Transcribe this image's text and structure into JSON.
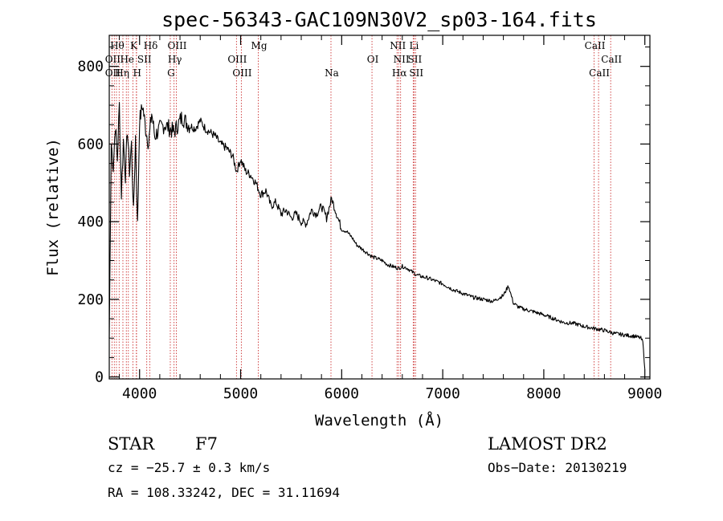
{
  "figure": {
    "title": "spec-56343-GAC109N30V2_sp03-164.fits"
  },
  "chart_data": {
    "type": "line",
    "title": "spec-56343-GAC109N30V2_sp03-164.fits",
    "xlabel": "Wavelength (Å)",
    "ylabel": "Flux (relative)",
    "xlim": [
      3700,
      9050
    ],
    "ylim": [
      -5,
      880
    ],
    "grid": false,
    "x_ticks": [
      4000,
      5000,
      6000,
      7000,
      8000,
      9000
    ],
    "y_ticks": [
      0,
      200,
      400,
      600,
      800
    ],
    "series": [
      {
        "wavelength": [
          3700,
          3720,
          3740,
          3760,
          3780,
          3800,
          3820,
          3840,
          3860,
          3880,
          3900,
          3920,
          3940,
          3960,
          3980,
          4000,
          4030,
          4060,
          4090,
          4120,
          4150,
          4200,
          4250,
          4300,
          4340,
          4380,
          4420,
          4480,
          4550,
          4600,
          4650,
          4700,
          4750,
          4800,
          4860,
          4920,
          4960,
          5000,
          5050,
          5100,
          5150,
          5200,
          5250,
          5300,
          5350,
          5400,
          5450,
          5500,
          5550,
          5600,
          5650,
          5700,
          5750,
          5800,
          5850,
          5900,
          5950,
          6000,
          6050,
          6100,
          6150,
          6200,
          6250,
          6300,
          6350,
          6400,
          6450,
          6500,
          6563,
          6600,
          6650,
          6700,
          6750,
          6800,
          6850,
          6900,
          6950,
          7000,
          7100,
          7200,
          7300,
          7400,
          7500,
          7600,
          7650,
          7700,
          7750,
          7800,
          7900,
          8000,
          8100,
          8200,
          8300,
          8400,
          8500,
          8600,
          8700,
          8800,
          8900,
          8960,
          8980,
          9000
        ],
        "flux": [
          100,
          600,
          540,
          650,
          560,
          700,
          470,
          610,
          520,
          640,
          530,
          600,
          420,
          620,
          390,
          660,
          700,
          640,
          600,
          680,
          620,
          640,
          650,
          640,
          630,
          650,
          670,
          650,
          640,
          660,
          640,
          630,
          620,
          600,
          590,
          570,
          530,
          560,
          530,
          520,
          500,
          470,
          480,
          440,
          450,
          420,
          430,
          410,
          420,
          400,
          395,
          430,
          420,
          440,
          410,
          460,
          420,
          380,
          375,
          360,
          340,
          330,
          320,
          310,
          305,
          300,
          290,
          285,
          280,
          285,
          280,
          270,
          262,
          258,
          255,
          250,
          245,
          240,
          225,
          215,
          205,
          200,
          195,
          210,
          235,
          190,
          180,
          175,
          168,
          160,
          150,
          140,
          138,
          130,
          125,
          120,
          112,
          108,
          105,
          100,
          90,
          20
        ]
      }
    ],
    "spectral_lines": [
      {
        "wavelength": 3727,
        "label": "OII"
      },
      {
        "wavelength": 3750,
        "label": "OII"
      },
      {
        "wavelength": 3771,
        "label": "Hθ"
      },
      {
        "wavelength": 3798,
        "label": "Hη"
      },
      {
        "wavelength": 3835,
        "label": "Hη"
      },
      {
        "wavelength": 3869,
        "label": "He"
      },
      {
        "wavelength": 3889,
        "label": "He"
      },
      {
        "wavelength": 3934,
        "label": "K"
      },
      {
        "wavelength": 3968,
        "label": "H"
      },
      {
        "wavelength": 3970,
        "label": "H"
      },
      {
        "wavelength": 4071,
        "label": "SII"
      },
      {
        "wavelength": 4102,
        "label": "Hδ"
      },
      {
        "wavelength": 4304,
        "label": "G"
      },
      {
        "wavelength": 4341,
        "label": "Hγ"
      },
      {
        "wavelength": 4364,
        "label": "OIII"
      },
      {
        "wavelength": 4959,
        "label": "OIII"
      },
      {
        "wavelength": 5007,
        "label": "OIII"
      },
      {
        "wavelength": 5175,
        "label": "Mg"
      },
      {
        "wavelength": 5894,
        "label": "Na"
      },
      {
        "wavelength": 6300,
        "label": "OI"
      },
      {
        "wavelength": 6548,
        "label": "NII"
      },
      {
        "wavelength": 6563,
        "label": "Hα"
      },
      {
        "wavelength": 6583,
        "label": "NII"
      },
      {
        "wavelength": 6708,
        "label": "Li"
      },
      {
        "wavelength": 6716,
        "label": "SII"
      },
      {
        "wavelength": 6731,
        "label": "SII"
      },
      {
        "wavelength": 8498,
        "label": "CaII"
      },
      {
        "wavelength": 8542,
        "label": "CaII"
      },
      {
        "wavelength": 8662,
        "label": "CaII"
      }
    ],
    "line_color": "#000000",
    "marker_line_color": "#cc3333"
  },
  "line_labels": [
    {
      "text": "Hθ",
      "wavelength": 3771,
      "row": 1
    },
    {
      "text": "K",
      "wavelength": 3934,
      "row": 1
    },
    {
      "text": "Hδ",
      "wavelength": 4102,
      "row": 1
    },
    {
      "text": "OIII",
      "wavelength": 4364,
      "row": 1
    },
    {
      "text": "Mg",
      "wavelength": 5175,
      "row": 1
    },
    {
      "text": "NII",
      "wavelength": 6548,
      "row": 1
    },
    {
      "text": "Li",
      "wavelength": 6708,
      "row": 1
    },
    {
      "text": "CaII",
      "wavelength": 8498,
      "row": 1
    },
    {
      "text": "OII",
      "wavelength": 3727,
      "row": 2
    },
    {
      "text": "He",
      "wavelength": 3869,
      "row": 2
    },
    {
      "text": "SII",
      "wavelength": 4040,
      "row": 2
    },
    {
      "text": "Hγ",
      "wavelength": 4341,
      "row": 2
    },
    {
      "text": "OIII",
      "wavelength": 4959,
      "row": 2
    },
    {
      "text": "OI",
      "wavelength": 6300,
      "row": 2
    },
    {
      "text": "NII",
      "wavelength": 6583,
      "row": 2
    },
    {
      "text": "SII",
      "wavelength": 6716,
      "row": 2
    },
    {
      "text": "CaII",
      "wavelength": 8662,
      "row": 2
    },
    {
      "text": "OII",
      "wavelength": 3727,
      "row": 3
    },
    {
      "text": "Hη",
      "wavelength": 3820,
      "row": 3
    },
    {
      "text": "H",
      "wavelength": 3968,
      "row": 3
    },
    {
      "text": "G",
      "wavelength": 4304,
      "row": 3
    },
    {
      "text": "OIII",
      "wavelength": 5007,
      "row": 3
    },
    {
      "text": "Na",
      "wavelength": 5894,
      "row": 3
    },
    {
      "text": "Hα",
      "wavelength": 6563,
      "row": 3
    },
    {
      "text": "SII",
      "wavelength": 6731,
      "row": 3
    },
    {
      "text": "CaII",
      "wavelength": 8542,
      "row": 3
    }
  ],
  "info": {
    "object_class": "STAR",
    "subclass": "F7",
    "cz": "cz = −25.7 ± 0.3 km/s",
    "coords": "RA = 108.33242, DEC =  31.11694",
    "survey": "LAMOST DR2",
    "obs_date": "Obs−Date: 20130219"
  }
}
